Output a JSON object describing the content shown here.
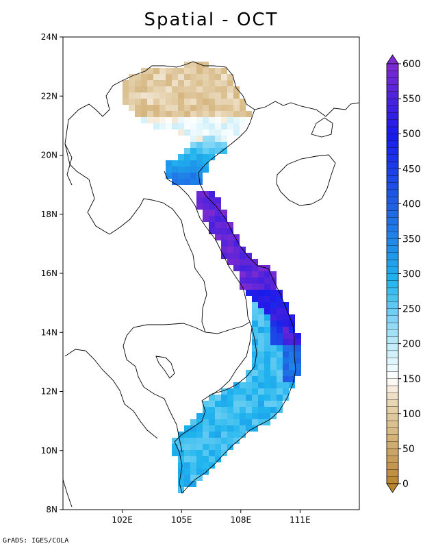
{
  "title": "Spatial - OCT",
  "footer": "GrADS: IGES/COLA",
  "map": {
    "lon_range": [
      99,
      114
    ],
    "lat_range": [
      8,
      24
    ],
    "x_ticks": [
      {
        "lon": 102,
        "label": "102E"
      },
      {
        "lon": 105,
        "label": "105E"
      },
      {
        "lon": 108,
        "label": "108E"
      },
      {
        "lon": 111,
        "label": "111E"
      }
    ],
    "y_ticks": [
      {
        "lat": 8,
        "label": "8N"
      },
      {
        "lat": 10,
        "label": "10N"
      },
      {
        "lat": 12,
        "label": "12N"
      },
      {
        "lat": 14,
        "label": "14N"
      },
      {
        "lat": 16,
        "label": "16N"
      },
      {
        "lat": 18,
        "label": "18N"
      },
      {
        "lat": 20,
        "label": "20N"
      },
      {
        "lat": 22,
        "label": "22N"
      },
      {
        "lat": 24,
        "label": "24N"
      }
    ]
  },
  "colorbar": {
    "min": 0,
    "max": 600,
    "step": 10,
    "labels": [
      "0",
      "50",
      "100",
      "150",
      "200",
      "250",
      "300",
      "350",
      "400",
      "450",
      "500",
      "550",
      "600"
    ],
    "label_values": [
      0,
      50,
      100,
      150,
      200,
      250,
      300,
      350,
      400,
      450,
      500,
      550,
      600
    ],
    "colors": {
      "brown_dark": "#b8862e",
      "beige": "#ead9bb",
      "white": "#ffffff",
      "light_blue": "#bfeaf8",
      "sky_blue": "#1fb4ee",
      "blue": "#1f5fe4",
      "deep_blue": "#1a1aea",
      "purple": "#7e2bd0"
    }
  }
}
